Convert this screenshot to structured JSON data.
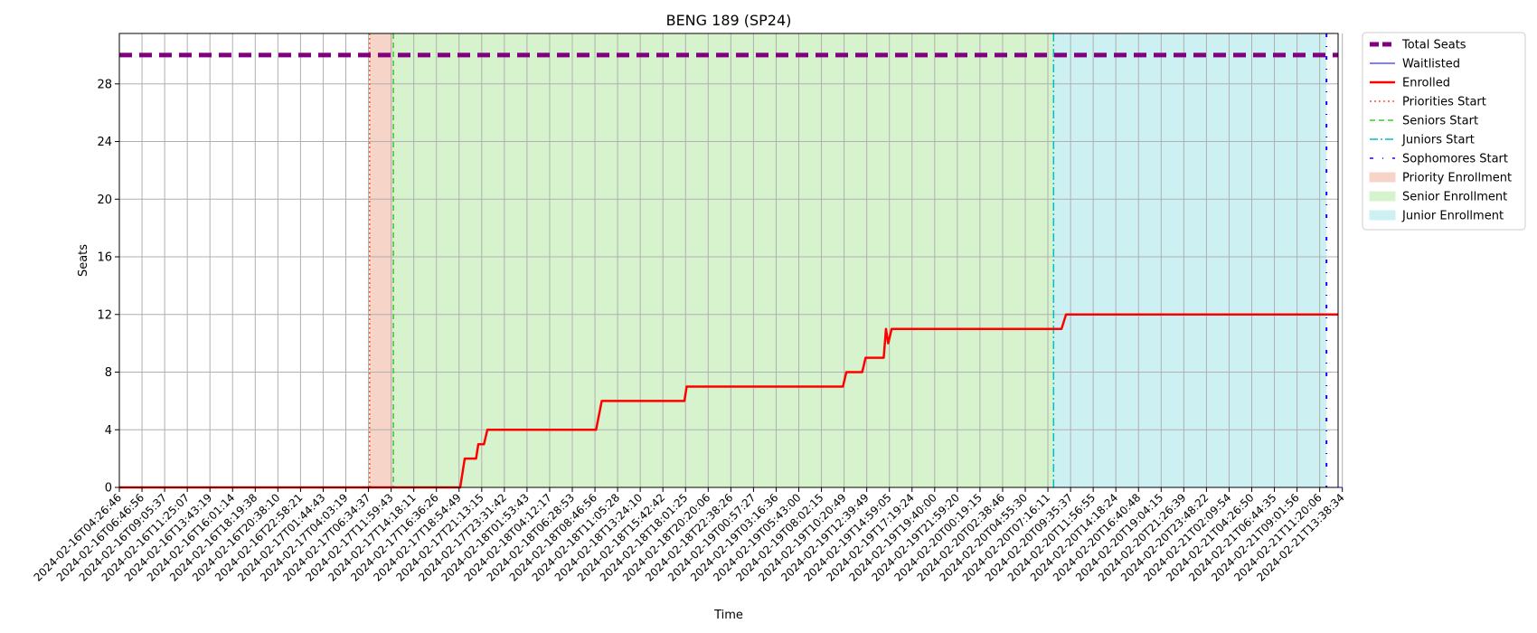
{
  "chart_data": {
    "type": "line",
    "title": "BENG 189 (SP24)",
    "xlabel": "Time",
    "ylabel": "Seats",
    "ylim": [
      0,
      31.5
    ],
    "yticks": [
      0,
      4,
      8,
      12,
      16,
      20,
      24,
      28
    ],
    "grid": true,
    "legend_position": "outside-top-right",
    "x_ticks": [
      "2024-02-16T04:26:46",
      "2024-02-16T06:46:56",
      "2024-02-16T09:05:37",
      "2024-02-16T11:25:07",
      "2024-02-16T13:43:19",
      "2024-02-16T16:01:14",
      "2024-02-16T18:19:38",
      "2024-02-16T20:38:10",
      "2024-02-16T22:58:21",
      "2024-02-17T01:44:43",
      "2024-02-17T04:03:19",
      "2024-02-17T06:34:37",
      "2024-02-17T11:59:43",
      "2024-02-17T14:18:11",
      "2024-02-17T16:36:26",
      "2024-02-17T18:54:49",
      "2024-02-17T21:13:15",
      "2024-02-17T23:31:42",
      "2024-02-18T01:53:43",
      "2024-02-18T04:12:17",
      "2024-02-18T06:28:53",
      "2024-02-18T08:46:56",
      "2024-02-18T11:05:28",
      "2024-02-18T13:24:10",
      "2024-02-18T15:42:42",
      "2024-02-18T18:01:25",
      "2024-02-18T20:20:06",
      "2024-02-18T22:38:26",
      "2024-02-19T00:57:27",
      "2024-02-19T03:16:36",
      "2024-02-19T05:43:00",
      "2024-02-19T08:02:15",
      "2024-02-19T10:20:49",
      "2024-02-19T12:39:49",
      "2024-02-19T14:59:05",
      "2024-02-19T17:19:24",
      "2024-02-19T19:40:00",
      "2024-02-19T21:59:20",
      "2024-02-20T00:19:15",
      "2024-02-20T02:38:46",
      "2024-02-20T04:55:30",
      "2024-02-20T07:16:11",
      "2024-02-20T09:35:37",
      "2024-02-20T11:56:55",
      "2024-02-20T14:18:24",
      "2024-02-20T16:40:48",
      "2024-02-20T19:04:15",
      "2024-02-20T21:26:39",
      "2024-02-20T23:48:22",
      "2024-02-21T02:09:54",
      "2024-02-21T04:26:50",
      "2024-02-21T06:44:35",
      "2024-02-21T09:01:56",
      "2024-02-21T11:20:06",
      "2024-02-21T13:38:34"
    ],
    "total_seats": 30,
    "waitlisted": [
      [
        0,
        0
      ],
      [
        54,
        0
      ]
    ],
    "enrolled": [
      [
        0,
        0
      ],
      [
        15.05,
        0
      ],
      [
        15.25,
        2
      ],
      [
        15.75,
        2
      ],
      [
        15.85,
        3
      ],
      [
        16.1,
        3
      ],
      [
        16.25,
        4
      ],
      [
        21.05,
        4
      ],
      [
        21.3,
        6
      ],
      [
        24.95,
        6
      ],
      [
        25.05,
        7
      ],
      [
        31.95,
        7
      ],
      [
        32.1,
        8
      ],
      [
        32.8,
        8
      ],
      [
        32.95,
        9
      ],
      [
        33.75,
        9
      ],
      [
        33.85,
        11
      ],
      [
        33.95,
        10
      ],
      [
        34.1,
        11
      ],
      [
        41.6,
        11
      ],
      [
        41.8,
        12
      ],
      [
        54.2,
        12
      ]
    ],
    "series": [
      {
        "name": "Total Seats",
        "color": "#800080",
        "style": "thick-dashed"
      },
      {
        "name": "Waitlisted",
        "color": "#0000ff",
        "style": "solid-thin"
      },
      {
        "name": "Enrolled",
        "color": "#ff0000",
        "style": "solid"
      },
      {
        "name": "Priorities Start",
        "color": "#ff5722",
        "style": "dotted",
        "at": 11.05
      },
      {
        "name": "Seniors Start",
        "color": "#32cd32",
        "style": "dashed",
        "at": 12.1
      },
      {
        "name": "Juniors Start",
        "color": "#00bfc4",
        "style": "dashdot",
        "at": 41.25
      },
      {
        "name": "Sophomores Start",
        "color": "#1e00ff",
        "style": "loose-dashdot",
        "at": 53.3
      }
    ],
    "regions": [
      {
        "name": "Priority Enrollment",
        "color": "#f6d4c7",
        "from": 11.05,
        "to": 12.1
      },
      {
        "name": "Senior Enrollment",
        "color": "#d7f3cd",
        "from": 12.1,
        "to": 41.25
      },
      {
        "name": "Junior Enrollment",
        "color": "#cdf0f3",
        "from": 41.25,
        "to": 53.3
      }
    ]
  }
}
